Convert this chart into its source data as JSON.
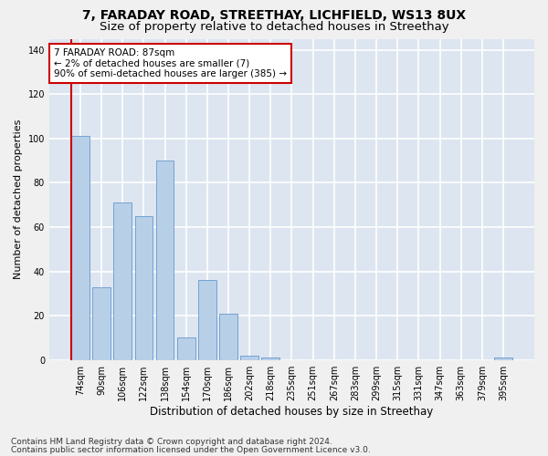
{
  "title1": "7, FARADAY ROAD, STREETHAY, LICHFIELD, WS13 8UX",
  "title2": "Size of property relative to detached houses in Streethay",
  "xlabel": "Distribution of detached houses by size in Streethay",
  "ylabel": "Number of detached properties",
  "categories": [
    "74sqm",
    "90sqm",
    "106sqm",
    "122sqm",
    "138sqm",
    "154sqm",
    "170sqm",
    "186sqm",
    "202sqm",
    "218sqm",
    "235sqm",
    "251sqm",
    "267sqm",
    "283sqm",
    "299sqm",
    "315sqm",
    "331sqm",
    "347sqm",
    "363sqm",
    "379sqm",
    "395sqm"
  ],
  "values": [
    101,
    33,
    71,
    65,
    90,
    10,
    36,
    21,
    2,
    1,
    0,
    0,
    0,
    0,
    0,
    0,
    0,
    0,
    0,
    0,
    1
  ],
  "bar_color": "#b8cfe8",
  "bar_edge_color": "#6699cc",
  "highlight_color": "#cc0000",
  "annotation_line1": "7 FARADAY ROAD: 87sqm",
  "annotation_line2": "← 2% of detached houses are smaller (7)",
  "annotation_line3": "90% of semi-detached houses are larger (385) →",
  "annotation_box_color": "#ffffff",
  "annotation_box_edge_color": "#cc0000",
  "ylim": [
    0,
    145
  ],
  "yticks": [
    0,
    20,
    40,
    60,
    80,
    100,
    120,
    140
  ],
  "background_color": "#dde5f0",
  "grid_color": "#ffffff",
  "fig_background": "#f0f0f0",
  "footnote1": "Contains HM Land Registry data © Crown copyright and database right 2024.",
  "footnote2": "Contains public sector information licensed under the Open Government Licence v3.0.",
  "title1_fontsize": 10,
  "title2_fontsize": 9.5,
  "ylabel_fontsize": 8,
  "xlabel_fontsize": 8.5,
  "tick_fontsize": 7,
  "annotation_fontsize": 7.5,
  "footnote_fontsize": 6.5
}
